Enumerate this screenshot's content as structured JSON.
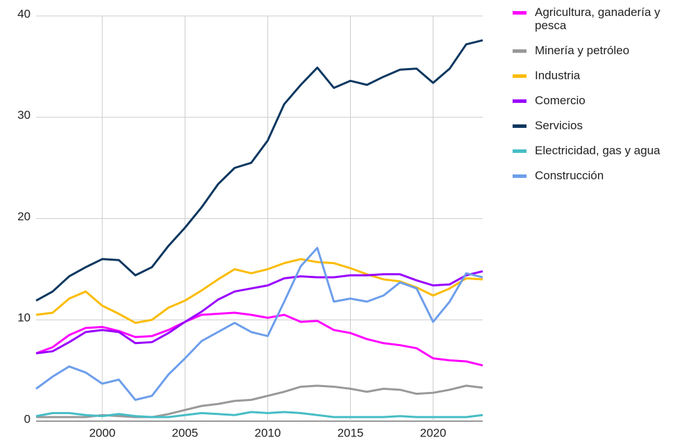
{
  "chart_data": {
    "type": "line",
    "x": [
      1996,
      1997,
      1998,
      1999,
      2000,
      2001,
      2002,
      2003,
      2004,
      2005,
      2006,
      2007,
      2008,
      2009,
      2010,
      2011,
      2012,
      2013,
      2014,
      2015,
      2016,
      2017,
      2018,
      2019,
      2020,
      2021,
      2022,
      2023
    ],
    "xlim": [
      1996,
      2023
    ],
    "xticks": [
      2000,
      2005,
      2010,
      2015,
      2020
    ],
    "ylim": [
      0,
      40
    ],
    "yticks": [
      0,
      10,
      20,
      30,
      40
    ],
    "grid": true,
    "legend": "right",
    "series": [
      {
        "name": "Agricultura, ganadería y pesca",
        "color": "#ff00ff",
        "values": [
          6.7,
          7.3,
          8.5,
          9.2,
          9.3,
          8.9,
          8.3,
          8.4,
          9.0,
          9.8,
          10.5,
          10.6,
          10.7,
          10.5,
          10.2,
          10.5,
          9.8,
          9.9,
          9.0,
          8.7,
          8.1,
          7.7,
          7.5,
          7.2,
          6.2,
          6.0,
          5.9,
          5.5
        ]
      },
      {
        "name": "Minería y petróleo",
        "color": "#999999",
        "values": [
          0.4,
          0.4,
          0.4,
          0.4,
          0.6,
          0.5,
          0.4,
          0.4,
          0.7,
          1.1,
          1.5,
          1.7,
          2.0,
          2.1,
          2.5,
          2.9,
          3.4,
          3.5,
          3.4,
          3.2,
          2.9,
          3.2,
          3.1,
          2.7,
          2.8,
          3.1,
          3.5,
          3.3
        ]
      },
      {
        "name": "Industria",
        "color": "#fbbc04",
        "values": [
          10.5,
          10.7,
          12.1,
          12.8,
          11.4,
          10.6,
          9.7,
          10.0,
          11.2,
          11.9,
          12.9,
          14.0,
          15.0,
          14.6,
          15.0,
          15.6,
          16.0,
          15.7,
          15.6,
          15.1,
          14.5,
          14.0,
          13.8,
          13.2,
          12.4,
          13.1,
          14.1,
          14.0
        ]
      },
      {
        "name": "Comercio",
        "color": "#9900ff",
        "values": [
          6.7,
          6.9,
          7.8,
          8.8,
          9.0,
          8.8,
          7.7,
          7.8,
          8.7,
          9.8,
          10.8,
          12.0,
          12.8,
          13.1,
          13.4,
          14.1,
          14.3,
          14.2,
          14.2,
          14.4,
          14.4,
          14.5,
          14.5,
          13.9,
          13.4,
          13.5,
          14.4,
          14.8
        ]
      },
      {
        "name": "Servicios",
        "color": "#0b3760",
        "values": [
          11.9,
          12.8,
          14.3,
          15.2,
          16.0,
          15.9,
          14.4,
          15.2,
          17.3,
          19.1,
          21.1,
          23.4,
          25.0,
          25.5,
          27.7,
          31.3,
          33.2,
          34.9,
          32.9,
          33.6,
          33.2,
          34.0,
          34.7,
          34.8,
          33.4,
          34.8,
          37.2,
          37.6
        ]
      },
      {
        "name": "Electricidad, gas y agua",
        "color": "#46bdc6",
        "values": [
          0.5,
          0.8,
          0.8,
          0.6,
          0.5,
          0.7,
          0.5,
          0.4,
          0.4,
          0.6,
          0.8,
          0.7,
          0.6,
          0.9,
          0.8,
          0.9,
          0.8,
          0.6,
          0.4,
          0.4,
          0.4,
          0.4,
          0.5,
          0.4,
          0.4,
          0.4,
          0.4,
          0.6
        ]
      },
      {
        "name": "Construcción",
        "color": "#6d9eeb",
        "values": [
          3.2,
          4.4,
          5.4,
          4.8,
          3.7,
          4.1,
          2.1,
          2.5,
          4.6,
          6.2,
          7.9,
          8.8,
          9.7,
          8.8,
          8.4,
          11.8,
          15.3,
          17.1,
          11.8,
          12.1,
          11.8,
          12.4,
          13.7,
          13.1,
          9.8,
          11.8,
          14.6,
          14.2
        ]
      }
    ]
  }
}
